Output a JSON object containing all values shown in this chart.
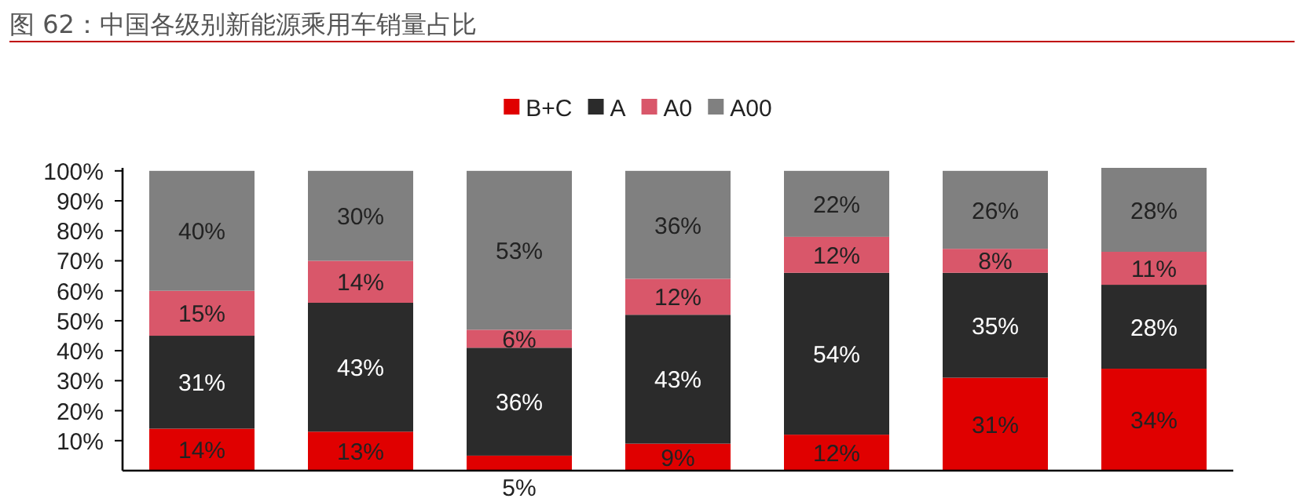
{
  "chart_data": {
    "type": "bar",
    "stacked": true,
    "title": "图 62：中国各级别新能源乘用车销量占比",
    "categories": [
      null,
      null,
      null,
      null,
      null,
      null,
      null
    ],
    "series": [
      {
        "name": "B+C",
        "color": "#e00000",
        "values": [
          14,
          13,
          5,
          9,
          12,
          31,
          34
        ],
        "value_labels": [
          "14%",
          "13%",
          "5%",
          "9%",
          "12%",
          "31%",
          "34%"
        ]
      },
      {
        "name": "A",
        "color": "#2b2b2b",
        "values": [
          31,
          43,
          36,
          43,
          54,
          35,
          28
        ],
        "value_labels": [
          "31%",
          "43%",
          "36%",
          "43%",
          "54%",
          "35%",
          "28%"
        ]
      },
      {
        "name": "A0",
        "color": "#d9576a",
        "values": [
          15,
          14,
          6,
          12,
          12,
          8,
          11
        ],
        "value_labels": [
          "15%",
          "14%",
          "6%",
          "12%",
          "12%",
          "8%",
          "11%"
        ]
      },
      {
        "name": "A00",
        "color": "#808080",
        "values": [
          40,
          30,
          53,
          36,
          22,
          26,
          28
        ],
        "value_labels": [
          "40%",
          "30%",
          "53%",
          "36%",
          "22%",
          "26%",
          "28%"
        ]
      }
    ],
    "ylim": [
      0,
      101
    ],
    "yticks": [
      {
        "value": 10,
        "label": "10%"
      },
      {
        "value": 20,
        "label": "20%"
      },
      {
        "value": 30,
        "label": "30%"
      },
      {
        "value": 40,
        "label": "40%"
      },
      {
        "value": 50,
        "label": "50%"
      },
      {
        "value": 60,
        "label": "60%"
      },
      {
        "value": 70,
        "label": "70%"
      },
      {
        "value": 80,
        "label": "80%"
      },
      {
        "value": 90,
        "label": "90%"
      },
      {
        "value": 100,
        "label": "100%"
      }
    ],
    "grid": false,
    "legend": "top"
  }
}
